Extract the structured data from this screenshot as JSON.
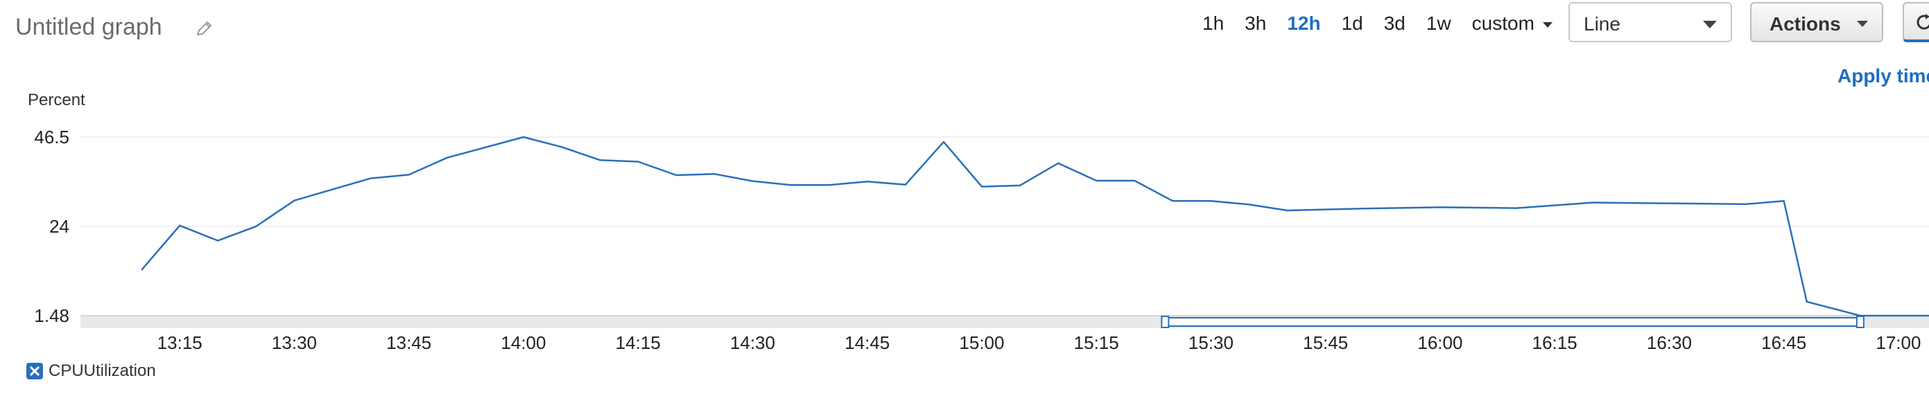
{
  "header": {
    "title": "Untitled graph",
    "edit_icon": "pencil-icon",
    "time_ranges": [
      {
        "label": "1h",
        "active": false
      },
      {
        "label": "3h",
        "active": false
      },
      {
        "label": "12h",
        "active": true
      },
      {
        "label": "1d",
        "active": false
      },
      {
        "label": "3d",
        "active": false
      },
      {
        "label": "1w",
        "active": false
      }
    ],
    "custom_label": "custom",
    "view_select": {
      "value": "Line"
    },
    "actions_label": "Actions",
    "refresh_icon": "refresh-icon",
    "apply_time_label": "Apply time range"
  },
  "colors": {
    "line": "#2a6fba",
    "accent": "#1d6fbf",
    "grid": "#ececec"
  },
  "chart_data": {
    "type": "line",
    "ylabel": "Percent",
    "yticks": [
      "46.5",
      "24",
      "1.48"
    ],
    "ylim": [
      1.48,
      46.5
    ],
    "xlim": [
      "13:02",
      "17:04"
    ],
    "xticks": [
      "13:15",
      "13:30",
      "13:45",
      "14:00",
      "14:15",
      "14:30",
      "14:45",
      "15:00",
      "15:15",
      "15:30",
      "15:45",
      "16:00",
      "16:15",
      "16:30",
      "16:45",
      "17:00"
    ],
    "grid": true,
    "legend_position": "bottom-left",
    "series": [
      {
        "name": "CPUUtilization",
        "x": [
          "13:10",
          "13:15",
          "13:20",
          "13:25",
          "13:30",
          "13:35",
          "13:40",
          "13:45",
          "13:50",
          "14:00",
          "14:05",
          "14:10",
          "14:15",
          "14:20",
          "14:25",
          "14:30",
          "14:35",
          "14:40",
          "14:45",
          "14:50",
          "14:55",
          "15:00",
          "15:05",
          "15:10",
          "15:15",
          "15:20",
          "15:25",
          "15:30",
          "15:35",
          "15:40",
          "15:50",
          "16:00",
          "16:10",
          "16:20",
          "16:30",
          "16:40",
          "16:45",
          "16:48",
          "16:55",
          "17:04"
        ],
        "values": [
          13.0,
          24.2,
          20.4,
          24.0,
          30.5,
          33.3,
          36.1,
          37.0,
          41.3,
          46.5,
          44.0,
          40.7,
          40.3,
          36.9,
          37.2,
          35.4,
          34.4,
          34.4,
          35.3,
          34.5,
          45.3,
          34.0,
          34.3,
          39.9,
          35.5,
          35.5,
          30.4,
          30.4,
          29.5,
          28.0,
          28.5,
          28.8,
          28.6,
          30.0,
          29.8,
          29.6,
          30.4,
          5.0,
          1.48,
          1.48
        ]
      }
    ],
    "time_selection": [
      "15:24",
      "16:55"
    ]
  }
}
